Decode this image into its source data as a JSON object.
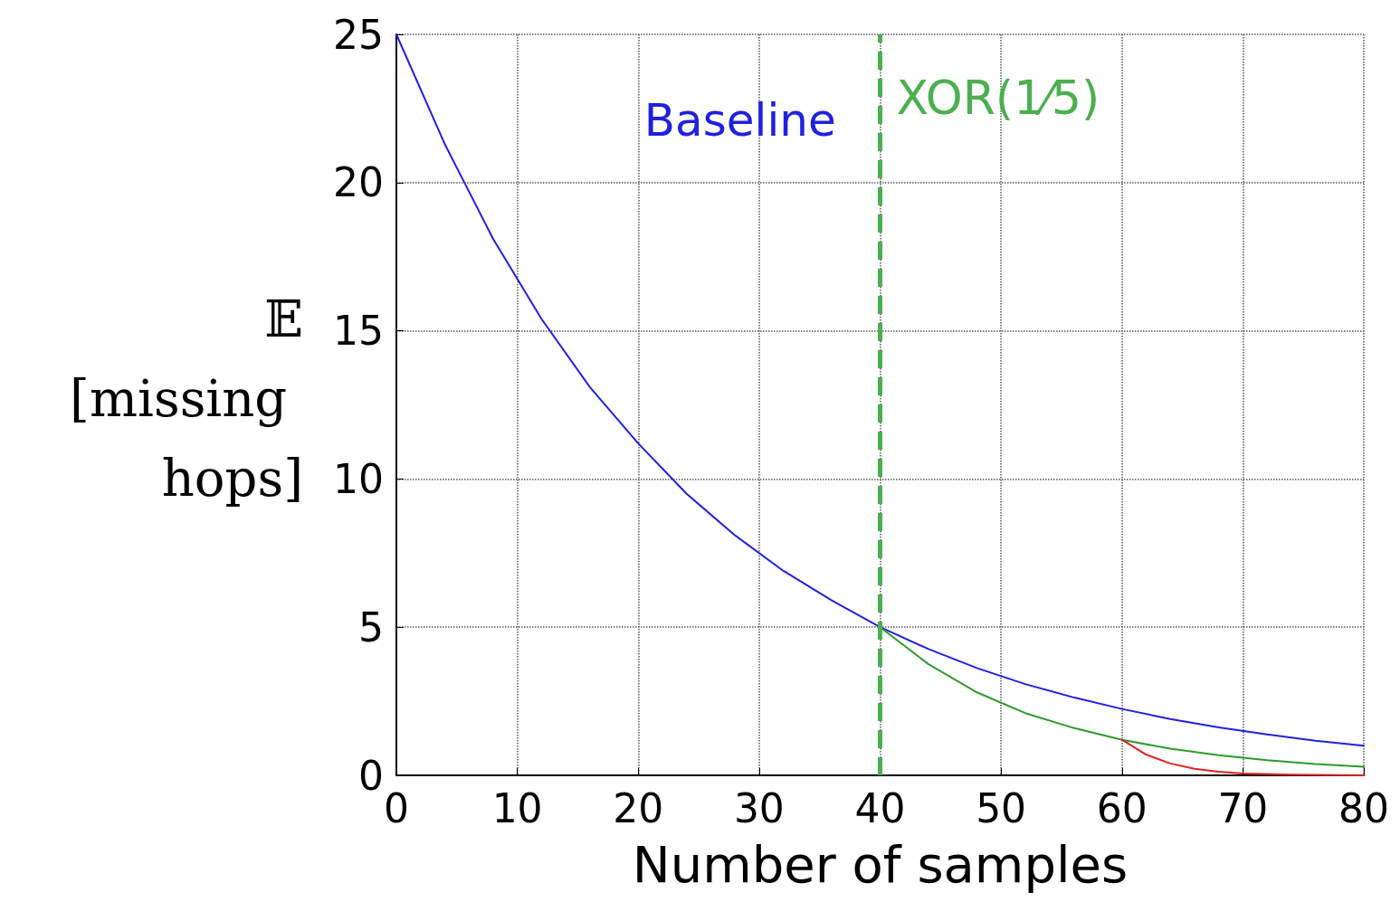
{
  "chart_data": {
    "type": "line",
    "xlabel": "Number of samples",
    "ylabel": "𝔼[missing hops]",
    "xlim": [
      0,
      80
    ],
    "xticks": [
      0,
      10,
      20,
      30,
      40,
      50,
      60,
      70,
      80
    ],
    "ylim": [
      0,
      25
    ],
    "yticks": [
      0,
      5,
      10,
      15,
      20,
      25
    ],
    "grid": true,
    "marker": "none",
    "line_style": "solid",
    "series": [
      {
        "name": "Baseline",
        "color": "#2020e0",
        "x": [
          0,
          4,
          8,
          12,
          16,
          20,
          24,
          28,
          32,
          36,
          40,
          44,
          48,
          52,
          56,
          60,
          64,
          68,
          72,
          76,
          80
        ],
        "values": [
          25,
          21.3,
          18.1,
          15.4,
          13.1,
          11.2,
          9.5,
          8.1,
          6.9,
          5.9,
          5,
          4.26,
          3.62,
          3.08,
          2.63,
          2.24,
          1.9,
          1.62,
          1.38,
          1.17,
          1.0
        ]
      },
      {
        "color": "#2e9a2e",
        "x": [
          40,
          44,
          48,
          52,
          56,
          60,
          64,
          68,
          72,
          76,
          80
        ],
        "values": [
          5,
          3.75,
          2.8,
          2.1,
          1.6,
          1.2,
          0.9,
          0.68,
          0.51,
          0.38,
          0.29
        ]
      },
      {
        "color": "#e02020",
        "x": [
          60,
          62,
          64,
          66,
          68,
          70,
          74,
          80
        ],
        "values": [
          1.2,
          0.7,
          0.4,
          0.22,
          0.12,
          0.06,
          0.02,
          0
        ]
      }
    ],
    "ref_lines": [
      {
        "axis": "x",
        "value": 40,
        "label": "XOR(1⁄5)",
        "color": "#4caf50",
        "line_style": "dashed"
      }
    ]
  }
}
